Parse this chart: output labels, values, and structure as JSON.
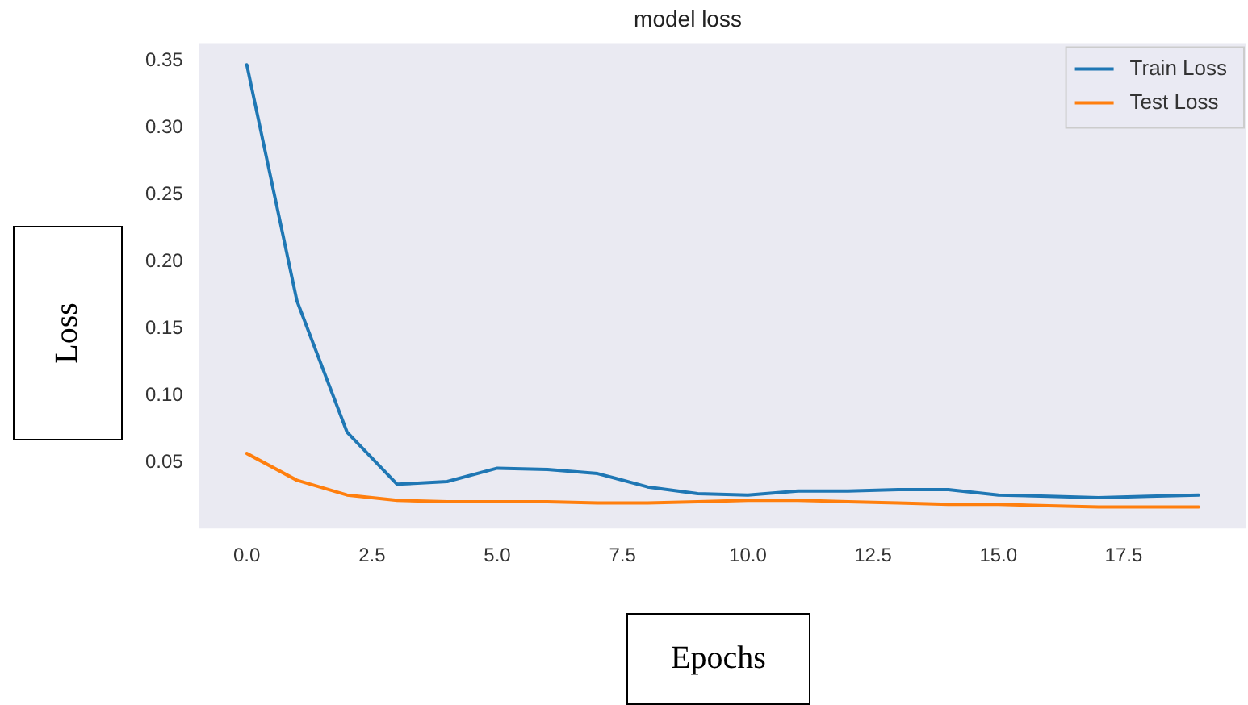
{
  "chart_data": {
    "type": "line",
    "title": "model loss",
    "xlabel": "Epochs",
    "ylabel": "Loss",
    "x": [
      0,
      1,
      2,
      3,
      4,
      5,
      6,
      7,
      8,
      9,
      10,
      11,
      12,
      13,
      14,
      15,
      16,
      17,
      18,
      19
    ],
    "series": [
      {
        "name": "Train Loss",
        "color": "#1f77b4",
        "values": [
          0.347,
          0.171,
          0.073,
          0.034,
          0.036,
          0.046,
          0.045,
          0.042,
          0.032,
          0.027,
          0.026,
          0.029,
          0.029,
          0.03,
          0.03,
          0.026,
          0.025,
          0.024,
          0.025,
          0.026
        ]
      },
      {
        "name": "Test Loss",
        "color": "#ff7f0e",
        "values": [
          0.057,
          0.037,
          0.026,
          0.022,
          0.021,
          0.021,
          0.021,
          0.02,
          0.02,
          0.021,
          0.022,
          0.022,
          0.021,
          0.02,
          0.019,
          0.019,
          0.018,
          0.017,
          0.017,
          0.017
        ]
      }
    ],
    "xlim": [
      -0.95,
      19.95
    ],
    "xticks": [
      {
        "value": 0,
        "label": "0.0"
      },
      {
        "value": 2.5,
        "label": "2.5"
      },
      {
        "value": 5,
        "label": "5.0"
      },
      {
        "value": 7.5,
        "label": "7.5"
      },
      {
        "value": 10,
        "label": "10.0"
      },
      {
        "value": 12.5,
        "label": "12.5"
      },
      {
        "value": 15,
        "label": "15.0"
      },
      {
        "value": 17.5,
        "label": "17.5"
      }
    ],
    "ylim": [
      0.001,
      0.363
    ],
    "yticks": [
      0.05,
      {
        "value": 0.1,
        "label": "0.10"
      },
      0.15,
      {
        "value": 0.2,
        "label": "0.20"
      },
      0.25,
      {
        "value": 0.3,
        "label": "0.30"
      },
      0.35
    ],
    "grid": false,
    "legend": "top right",
    "marker": "none",
    "line_style": "solid"
  }
}
